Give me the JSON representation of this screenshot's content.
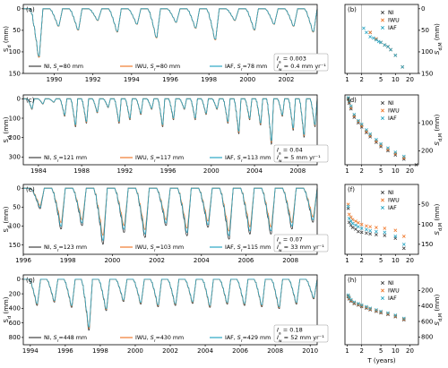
{
  "legend_labels": [
    "NI",
    "IWU",
    "IAF"
  ],
  "series_colors": {
    "NI": "#404040",
    "IWU": "#f07a2e",
    "IAF": "#2aa6c4"
  },
  "x_axis_label": "T (years)",
  "chart_data": [
    {
      "type": "line",
      "panel": "(a)",
      "ylabel": "S_d (mm)",
      "ylim": [
        150,
        -10
      ],
      "yticks": [
        0,
        50,
        100,
        150
      ],
      "xlim": [
        1988.4,
        2003.6
      ],
      "xticks": [
        1990,
        1992,
        1994,
        1996,
        1998,
        2000,
        2002
      ],
      "drought_depth_mm": [
        125,
        45,
        55,
        30,
        60,
        40,
        75,
        35,
        50,
        80,
        30,
        55,
        40,
        45,
        60
      ],
      "annotation": [
        "I_a = 0.003",
        "I_w = 0.4 mm yr⁻¹"
      ],
      "series": [
        {
          "name": "NI",
          "label": "NI, Sr=80 mm",
          "scale": 1.0
        },
        {
          "name": "IWU",
          "label": "IWU, Sr=80 mm",
          "scale": 1.0
        },
        {
          "name": "IAF",
          "label": "IAF, Sr=78 mm",
          "scale": 0.98
        }
      ]
    },
    {
      "type": "line",
      "panel": "(c)",
      "ylabel": "S_d (mm)",
      "ylim": [
        340,
        -20
      ],
      "yticks": [
        0,
        100,
        200,
        300
      ],
      "xlim": [
        1982.6,
        2009.8
      ],
      "xticks": [
        1984,
        1988,
        1992,
        1996,
        2000,
        2004,
        2008
      ],
      "drought_depth_mm": [
        60,
        30,
        20,
        100,
        160,
        140,
        80,
        50,
        140,
        120,
        90,
        60,
        160,
        120,
        60,
        120,
        90,
        60,
        140,
        200,
        120,
        150,
        260,
        100,
        180,
        220,
        160
      ],
      "annotation": [
        "I_a = 0.04",
        "I_w = 5 mm yr⁻¹"
      ],
      "series": [
        {
          "name": "NI",
          "label": "NI, Sr=121 mm",
          "scale": 1.0
        },
        {
          "name": "IWU",
          "label": "IWU, Sr=117 mm",
          "scale": 0.96
        },
        {
          "name": "IAF",
          "label": "IAF, Sr=113 mm",
          "scale": 0.93
        }
      ]
    },
    {
      "type": "line",
      "panel": "(e)",
      "ylabel": "S_d (mm)",
      "ylim": [
        175,
        -10
      ],
      "yticks": [
        0,
        50,
        100,
        150
      ],
      "xlim": [
        1996.0,
        2009.2
      ],
      "xticks": [
        1996,
        1998,
        2000,
        2002,
        2004,
        2006,
        2008
      ],
      "drought_depth_mm": [
        60,
        120,
        110,
        165,
        130,
        145,
        110,
        140,
        115,
        150,
        135,
        135,
        120,
        100
      ],
      "annotation": [
        "I_a = 0.07",
        "I_w = 33 mm yr⁻¹"
      ],
      "series": [
        {
          "name": "NI",
          "label": "NI, Sr=123 mm",
          "scale": 1.0
        },
        {
          "name": "IWU",
          "label": "IWU, Sr=103 mm",
          "scale": 0.84
        },
        {
          "name": "IAF",
          "label": "IAF, Sr=115 mm",
          "scale": 0.93
        }
      ]
    },
    {
      "type": "line",
      "panel": "(g)",
      "ylabel": "S_d (mm)",
      "ylim": [
        900,
        -60
      ],
      "yticks": [
        0,
        200,
        400,
        600,
        800
      ],
      "xlim": [
        1993.6,
        2010.4
      ],
      "xticks": [
        1994,
        1996,
        1998,
        2000,
        2002,
        2004,
        2006,
        2008,
        2010
      ],
      "drought_depth_mm": [
        400,
        350,
        430,
        780,
        480,
        340,
        380,
        420,
        400,
        370,
        430,
        380,
        400,
        420,
        450,
        380,
        300
      ],
      "annotation": [
        "I_a = 0.18",
        "I_w = 52 mm yr⁻¹"
      ],
      "series": [
        {
          "name": "NI",
          "label": "NI, Sr=448 mm",
          "scale": 1.0
        },
        {
          "name": "IWU",
          "label": "IWU, Sr=430 mm",
          "scale": 0.96
        },
        {
          "name": "IAF",
          "label": "IAF, Sr=429 mm",
          "scale": 0.94
        }
      ]
    },
    {
      "type": "scatter",
      "panel": "(b)",
      "ylabel": "S_{d,M}",
      "ylim": [
        150,
        -10
      ],
      "yticks": [
        0,
        50,
        100,
        150
      ],
      "xticks": [
        1,
        2,
        5,
        10,
        20
      ],
      "T_ref": 2,
      "NI": [
        [
          3,
          55
        ],
        [
          4,
          70
        ],
        [
          5,
          78
        ],
        [
          6,
          84
        ],
        [
          7,
          88
        ],
        [
          8,
          95
        ],
        [
          10,
          108
        ],
        [
          14,
          135
        ]
      ],
      "IWU": [
        [
          3,
          55
        ],
        [
          4,
          70
        ],
        [
          5,
          78
        ],
        [
          6,
          84
        ],
        [
          7,
          88
        ],
        [
          8,
          95
        ],
        [
          10,
          108
        ],
        [
          14,
          135
        ]
      ],
      "IAF": [
        [
          2.2,
          45
        ],
        [
          2.5,
          55
        ],
        [
          3,
          65
        ],
        [
          3.5,
          68
        ],
        [
          4,
          72
        ],
        [
          4.5,
          76
        ],
        [
          5,
          78
        ],
        [
          6,
          84
        ],
        [
          7,
          88
        ],
        [
          8,
          95
        ],
        [
          10,
          108
        ],
        [
          14,
          135
        ]
      ]
    },
    {
      "type": "scatter",
      "panel": "(d)",
      "ylabel": "S_{d,M}",
      "ylim": [
        250,
        0
      ],
      "yticks": [
        100,
        200
      ],
      "xticks": [
        1,
        2,
        5,
        10,
        20
      ],
      "T_ref": 2,
      "NI": [
        [
          1.05,
          15
        ],
        [
          1.1,
          30
        ],
        [
          1.2,
          50
        ],
        [
          1.4,
          80
        ],
        [
          1.7,
          100
        ],
        [
          2,
          115
        ],
        [
          2.5,
          135
        ],
        [
          3,
          150
        ],
        [
          4,
          170
        ],
        [
          5,
          185
        ],
        [
          7,
          200
        ],
        [
          10,
          215
        ],
        [
          15,
          230
        ],
        [
          27,
          250
        ]
      ],
      "IWU": [
        [
          1.05,
          12
        ],
        [
          1.1,
          25
        ],
        [
          1.2,
          45
        ],
        [
          1.4,
          75
        ],
        [
          1.7,
          95
        ],
        [
          2,
          110
        ],
        [
          2.5,
          130
        ],
        [
          3,
          145
        ],
        [
          4,
          165
        ],
        [
          5,
          180
        ],
        [
          7,
          195
        ],
        [
          10,
          210
        ],
        [
          15,
          225
        ]
      ],
      "IAF": [
        [
          1.05,
          10
        ],
        [
          1.1,
          22
        ],
        [
          1.2,
          40
        ],
        [
          1.4,
          70
        ],
        [
          1.7,
          92
        ],
        [
          2,
          105
        ],
        [
          2.5,
          125
        ],
        [
          3,
          140
        ],
        [
          4,
          160
        ],
        [
          5,
          175
        ],
        [
          7,
          190
        ],
        [
          10,
          205
        ],
        [
          15,
          220
        ]
      ]
    },
    {
      "type": "scatter",
      "panel": "(f)",
      "ylabel": "S_{d,M}",
      "ylim": [
        175,
        0
      ],
      "yticks": [
        50,
        100,
        150
      ],
      "xticks": [
        1,
        2,
        5,
        10,
        20
      ],
      "T_ref": 2,
      "NI": [
        [
          1.05,
          60
        ],
        [
          1.1,
          95
        ],
        [
          1.2,
          102
        ],
        [
          1.3,
          108
        ],
        [
          1.5,
          112
        ],
        [
          1.7,
          118
        ],
        [
          2,
          120
        ],
        [
          2.5,
          122
        ],
        [
          3,
          124
        ],
        [
          4,
          126
        ],
        [
          6,
          128
        ],
        [
          10,
          135
        ],
        [
          15,
          160
        ]
      ],
      "IWU": [
        [
          1.05,
          50
        ],
        [
          1.1,
          75
        ],
        [
          1.2,
          82
        ],
        [
          1.3,
          88
        ],
        [
          1.5,
          92
        ],
        [
          1.7,
          96
        ],
        [
          2,
          100
        ],
        [
          2.5,
          104
        ],
        [
          3,
          106
        ],
        [
          4,
          108
        ],
        [
          6,
          110
        ],
        [
          10,
          115
        ],
        [
          15,
          130
        ]
      ],
      "IAF": [
        [
          1.05,
          55
        ],
        [
          1.1,
          85
        ],
        [
          1.2,
          92
        ],
        [
          1.3,
          98
        ],
        [
          1.5,
          102
        ],
        [
          1.7,
          106
        ],
        [
          2,
          110
        ],
        [
          2.5,
          113
        ],
        [
          3,
          116
        ],
        [
          4,
          118
        ],
        [
          6,
          120
        ],
        [
          10,
          130
        ],
        [
          15,
          150
        ]
      ]
    },
    {
      "type": "scatter",
      "panel": "(h)",
      "ylabel": "S_{d,M}",
      "ylim": [
        900,
        0
      ],
      "yticks": [
        200,
        400,
        600,
        800
      ],
      "xticks": [
        1,
        2,
        5,
        10,
        20
      ],
      "T_ref": 2,
      "NI": [
        [
          1.05,
          280
        ],
        [
          1.1,
          310
        ],
        [
          1.2,
          340
        ],
        [
          1.4,
          370
        ],
        [
          1.7,
          390
        ],
        [
          2,
          410
        ],
        [
          2.5,
          430
        ],
        [
          3,
          450
        ],
        [
          4,
          470
        ],
        [
          5,
          490
        ],
        [
          7,
          510
        ],
        [
          10,
          540
        ],
        [
          15,
          580
        ]
      ],
      "IWU": [
        [
          1.05,
          270
        ],
        [
          1.1,
          300
        ],
        [
          1.2,
          330
        ],
        [
          1.4,
          360
        ],
        [
          1.7,
          380
        ],
        [
          2,
          400
        ],
        [
          2.5,
          420
        ],
        [
          3,
          440
        ],
        [
          4,
          460
        ],
        [
          5,
          480
        ],
        [
          7,
          500
        ],
        [
          10,
          530
        ],
        [
          15,
          570
        ]
      ],
      "IAF": [
        [
          1.05,
          260
        ],
        [
          1.1,
          290
        ],
        [
          1.2,
          320
        ],
        [
          1.4,
          350
        ],
        [
          1.7,
          370
        ],
        [
          2,
          390
        ],
        [
          2.5,
          410
        ],
        [
          3,
          430
        ],
        [
          4,
          450
        ],
        [
          5,
          470
        ],
        [
          7,
          490
        ],
        [
          10,
          520
        ],
        [
          15,
          560
        ]
      ]
    }
  ]
}
